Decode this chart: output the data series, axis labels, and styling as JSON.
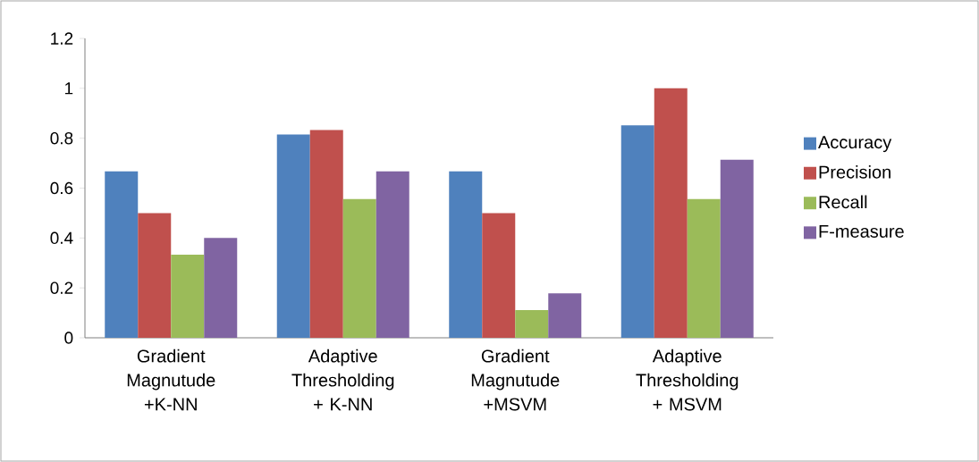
{
  "chart_data": {
    "type": "bar",
    "categories": [
      "Gradient Magnutude +K-NN",
      "Adaptive Thresholding + K-NN",
      "Gradient Magnutude +MSVM",
      "Adaptive Thresholding + MSVM"
    ],
    "series": [
      {
        "name": "Accuracy",
        "color": "#4f81bd",
        "values": [
          0.667,
          0.815,
          0.667,
          0.852
        ]
      },
      {
        "name": "Precision",
        "color": "#c0504d",
        "values": [
          0.5,
          0.833,
          0.5,
          1.0
        ]
      },
      {
        "name": "Recall",
        "color": "#9bbb59",
        "values": [
          0.333,
          0.556,
          0.111,
          0.556
        ]
      },
      {
        "name": "F-measure",
        "color": "#8064a2",
        "values": [
          0.4,
          0.667,
          0.178,
          0.714
        ]
      }
    ],
    "ylim": [
      0,
      1.2
    ],
    "yticks": [
      0,
      0.2,
      0.4,
      0.6,
      0.8,
      1,
      1.2
    ],
    "legend": "right"
  }
}
